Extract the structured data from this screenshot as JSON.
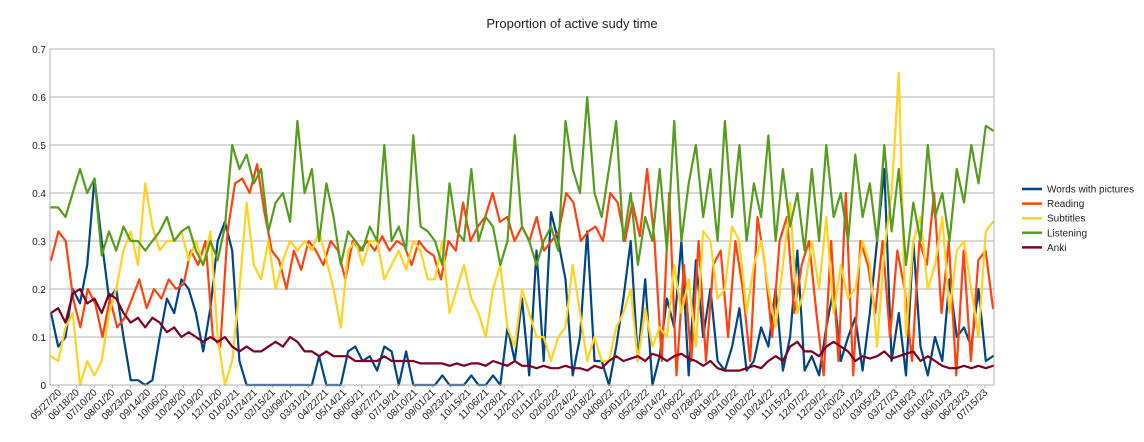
{
  "chart_data": {
    "type": "line",
    "title": "Proportion of active sudy time",
    "xlabel": "",
    "ylabel": "",
    "ylim": [
      0,
      0.7
    ],
    "yticks": [
      "0",
      "0.1",
      "0.2",
      "0.3",
      "0.4",
      "0.5",
      "0.6",
      "0.7"
    ],
    "grid": "horizontal",
    "legend": "right",
    "x_tick_labels": [
      "05/27/20",
      "06/18/20",
      "07/10/20",
      "08/01/20",
      "08/23/20",
      "09/14/20",
      "10/06/20",
      "10/28/20",
      "11/19/20",
      "12/11/20",
      "01/02/21",
      "01/24/21",
      "02/15/21",
      "03/09/21",
      "03/31/21",
      "04/22/21",
      "05/14/21",
      "06/05/21",
      "06/27/21",
      "07/19/21",
      "08/10/21",
      "09/01/21",
      "09/23/21",
      "10/15/21",
      "11/06/21",
      "11/28/21",
      "12/20/21",
      "01/11/22",
      "02/02/22",
      "02/24/22",
      "03/18/22",
      "04/09/22",
      "05/01/22",
      "05/23/22",
      "06/14/22",
      "07/06/22",
      "07/28/22",
      "08/19/22",
      "09/10/22",
      "10/02/22",
      "10/24/22",
      "11/15/22",
      "12/07/22",
      "12/29/22",
      "01/20/23",
      "02/11/23",
      "03/05/23",
      "03/27/23",
      "04/18/23",
      "05/10/23",
      "06/01/23",
      "06/23/23",
      "07/15/23"
    ],
    "series": [
      {
        "name": "Words with pictures",
        "color": "#004586",
        "values": [
          0.15,
          0.08,
          0.1,
          0.2,
          0.17,
          0.25,
          0.43,
          0.3,
          0.18,
          0.2,
          0.1,
          0.01,
          0.01,
          0.0,
          0.01,
          0.1,
          0.18,
          0.15,
          0.22,
          0.2,
          0.15,
          0.07,
          0.16,
          0.3,
          0.34,
          0.28,
          0.05,
          0.0,
          0.0,
          0.0,
          0.0,
          0.0,
          0.0,
          0.0,
          0.0,
          0.0,
          0.0,
          0.06,
          0.0,
          0.0,
          0.0,
          0.07,
          0.08,
          0.05,
          0.06,
          0.03,
          0.08,
          0.07,
          0.0,
          0.07,
          0.0,
          0.0,
          0.0,
          0.0,
          0.02,
          0.0,
          0.0,
          0.0,
          0.02,
          0.0,
          0.0,
          0.02,
          0.0,
          0.12,
          0.05,
          0.18,
          0.02,
          0.28,
          0.05,
          0.36,
          0.3,
          0.22,
          0.02,
          0.1,
          0.32,
          0.05,
          0.05,
          0.0,
          0.08,
          0.18,
          0.3,
          0.05,
          0.22,
          0.0,
          0.06,
          0.18,
          0.12,
          0.3,
          0.02,
          0.26,
          0.1,
          0.2,
          0.05,
          0.03,
          0.08,
          0.16,
          0.03,
          0.05,
          0.12,
          0.08,
          0.2,
          0.03,
          0.1,
          0.28,
          0.03,
          0.06,
          0.02,
          0.12,
          0.2,
          0.05,
          0.1,
          0.14,
          0.03,
          0.15,
          0.3,
          0.45,
          0.05,
          0.15,
          0.02,
          0.3,
          0.08,
          0.02,
          0.1,
          0.05,
          0.22,
          0.1,
          0.12,
          0.08,
          0.2,
          0.05,
          0.06
        ]
      },
      {
        "name": "Reading",
        "color": "#ff420e",
        "values": [
          0.26,
          0.32,
          0.3,
          0.18,
          0.12,
          0.2,
          0.17,
          0.1,
          0.18,
          0.12,
          0.14,
          0.18,
          0.22,
          0.16,
          0.2,
          0.18,
          0.22,
          0.2,
          0.21,
          0.28,
          0.25,
          0.3,
          0.1,
          0.08,
          0.32,
          0.42,
          0.43,
          0.4,
          0.46,
          0.36,
          0.28,
          0.26,
          0.2,
          0.28,
          0.24,
          0.3,
          0.28,
          0.25,
          0.3,
          0.28,
          0.22,
          0.3,
          0.28,
          0.3,
          0.28,
          0.31,
          0.28,
          0.3,
          0.29,
          0.25,
          0.3,
          0.28,
          0.27,
          0.22,
          0.3,
          0.28,
          0.38,
          0.3,
          0.33,
          0.35,
          0.4,
          0.34,
          0.35,
          0.3,
          0.33,
          0.3,
          0.35,
          0.28,
          0.3,
          0.32,
          0.4,
          0.38,
          0.3,
          0.32,
          0.33,
          0.3,
          0.4,
          0.38,
          0.3,
          0.38,
          0.31,
          0.45,
          0.3,
          0.05,
          0.4,
          0.02,
          0.25,
          0.05,
          0.3,
          0.05,
          0.25,
          0.28,
          0.1,
          0.3,
          0.2,
          0.05,
          0.35,
          0.25,
          0.1,
          0.3,
          0.35,
          0.15,
          0.25,
          0.3,
          0.15,
          0.02,
          0.3,
          0.05,
          0.4,
          0.02,
          0.3,
          0.25,
          0.15,
          0.3,
          0.1,
          0.28,
          0.2,
          0.05,
          0.3,
          0.25,
          0.4,
          0.15,
          0.3,
          0.02,
          0.28,
          0.05,
          0.26,
          0.28,
          0.16
        ]
      },
      {
        "name": "Subtitles",
        "color": "#ffd320",
        "values": [
          0.06,
          0.05,
          0.12,
          0.15,
          0.0,
          0.05,
          0.02,
          0.05,
          0.15,
          0.2,
          0.28,
          0.32,
          0.25,
          0.42,
          0.33,
          0.28,
          0.3,
          0.3,
          0.32,
          0.26,
          0.3,
          0.25,
          0.32,
          0.1,
          0.0,
          0.05,
          0.2,
          0.38,
          0.25,
          0.22,
          0.3,
          0.2,
          0.26,
          0.3,
          0.28,
          0.3,
          0.28,
          0.32,
          0.26,
          0.2,
          0.12,
          0.28,
          0.3,
          0.25,
          0.3,
          0.3,
          0.22,
          0.25,
          0.28,
          0.24,
          0.3,
          0.28,
          0.22,
          0.22,
          0.3,
          0.15,
          0.2,
          0.25,
          0.18,
          0.15,
          0.1,
          0.2,
          0.25,
          0.12,
          0.08,
          0.2,
          0.15,
          0.1,
          0.1,
          0.05,
          0.1,
          0.12,
          0.25,
          0.15,
          0.05,
          0.1,
          0.05,
          0.05,
          0.12,
          0.15,
          0.2,
          0.05,
          0.16,
          0.08,
          0.12,
          0.1,
          0.25,
          0.15,
          0.22,
          0.08,
          0.32,
          0.3,
          0.18,
          0.2,
          0.33,
          0.3,
          0.15,
          0.25,
          0.3,
          0.2,
          0.12,
          0.25,
          0.38,
          0.15,
          0.2,
          0.3,
          0.2,
          0.35,
          0.15,
          0.25,
          0.18,
          0.2,
          0.3,
          0.25,
          0.08,
          0.28,
          0.4,
          0.65,
          0.1,
          0.3,
          0.35,
          0.2,
          0.25,
          0.35,
          0.15,
          0.28,
          0.3,
          0.2,
          0.1,
          0.32,
          0.34
        ]
      },
      {
        "name": "Listening",
        "color": "#579d1c",
        "values": [
          0.37,
          0.37,
          0.35,
          0.4,
          0.45,
          0.4,
          0.43,
          0.27,
          0.32,
          0.28,
          0.33,
          0.3,
          0.3,
          0.28,
          0.3,
          0.32,
          0.35,
          0.3,
          0.32,
          0.33,
          0.28,
          0.25,
          0.3,
          0.26,
          0.33,
          0.5,
          0.45,
          0.48,
          0.42,
          0.45,
          0.32,
          0.38,
          0.4,
          0.34,
          0.55,
          0.4,
          0.45,
          0.3,
          0.42,
          0.35,
          0.25,
          0.32,
          0.3,
          0.28,
          0.33,
          0.3,
          0.5,
          0.3,
          0.33,
          0.28,
          0.52,
          0.33,
          0.32,
          0.3,
          0.25,
          0.42,
          0.32,
          0.3,
          0.45,
          0.3,
          0.35,
          0.33,
          0.25,
          0.3,
          0.52,
          0.33,
          0.3,
          0.25,
          0.3,
          0.33,
          0.28,
          0.55,
          0.45,
          0.4,
          0.6,
          0.4,
          0.35,
          0.45,
          0.55,
          0.3,
          0.4,
          0.25,
          0.35,
          0.3,
          0.45,
          0.28,
          0.55,
          0.3,
          0.42,
          0.5,
          0.35,
          0.45,
          0.3,
          0.55,
          0.35,
          0.5,
          0.3,
          0.42,
          0.35,
          0.52,
          0.3,
          0.45,
          0.33,
          0.4,
          0.28,
          0.45,
          0.3,
          0.5,
          0.35,
          0.4,
          0.3,
          0.48,
          0.35,
          0.42,
          0.3,
          0.5,
          0.32,
          0.45,
          0.25,
          0.38,
          0.3,
          0.5,
          0.35,
          0.4,
          0.3,
          0.45,
          0.38,
          0.5,
          0.42,
          0.54,
          0.53
        ]
      },
      {
        "name": "Anki",
        "color": "#7e0021",
        "values": [
          0.15,
          0.16,
          0.13,
          0.19,
          0.2,
          0.17,
          0.18,
          0.15,
          0.19,
          0.18,
          0.15,
          0.13,
          0.14,
          0.12,
          0.14,
          0.13,
          0.11,
          0.12,
          0.1,
          0.11,
          0.1,
          0.09,
          0.1,
          0.09,
          0.1,
          0.08,
          0.07,
          0.08,
          0.07,
          0.07,
          0.08,
          0.09,
          0.08,
          0.1,
          0.09,
          0.07,
          0.07,
          0.06,
          0.07,
          0.06,
          0.06,
          0.06,
          0.05,
          0.05,
          0.05,
          0.05,
          0.06,
          0.05,
          0.05,
          0.05,
          0.05,
          0.045,
          0.045,
          0.045,
          0.045,
          0.04,
          0.045,
          0.04,
          0.045,
          0.045,
          0.04,
          0.05,
          0.045,
          0.04,
          0.05,
          0.04,
          0.04,
          0.035,
          0.04,
          0.035,
          0.035,
          0.04,
          0.035,
          0.035,
          0.03,
          0.04,
          0.035,
          0.05,
          0.06,
          0.05,
          0.055,
          0.06,
          0.05,
          0.065,
          0.06,
          0.05,
          0.06,
          0.065,
          0.055,
          0.05,
          0.04,
          0.05,
          0.035,
          0.03,
          0.03,
          0.03,
          0.035,
          0.04,
          0.035,
          0.05,
          0.06,
          0.05,
          0.08,
          0.09,
          0.07,
          0.07,
          0.06,
          0.08,
          0.09,
          0.08,
          0.07,
          0.05,
          0.06,
          0.055,
          0.06,
          0.07,
          0.055,
          0.06,
          0.065,
          0.07,
          0.05,
          0.06,
          0.05,
          0.04,
          0.035,
          0.035,
          0.04,
          0.035,
          0.04,
          0.035,
          0.04
        ]
      }
    ]
  }
}
